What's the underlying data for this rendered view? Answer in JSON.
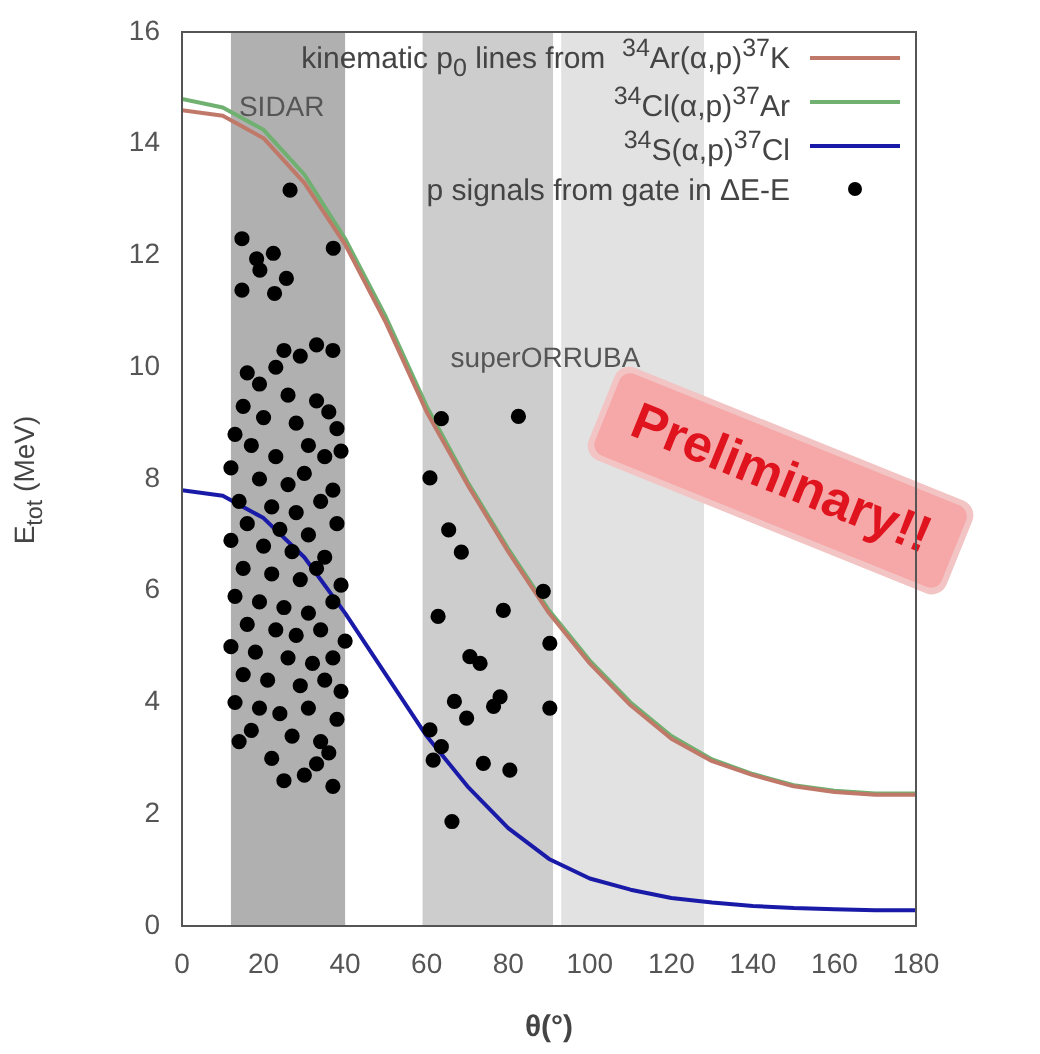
{
  "chart_data": {
    "type": "scatter",
    "xlabel": "θ(°)",
    "ylabel": "E$_{tot}$ (MeV)",
    "legend_title": "kinematic p$_{0}$ lines from",
    "legend": "top right",
    "grid": false,
    "xlim": [
      0,
      180
    ],
    "xticks": [
      0,
      20,
      40,
      60,
      80,
      100,
      120,
      140,
      160,
      180
    ],
    "ylim": [
      0,
      16
    ],
    "yticks": [
      0,
      2,
      4,
      6,
      8,
      10,
      12,
      14,
      16
    ],
    "bands": [
      {
        "axis": "x",
        "from": 12,
        "to": 40,
        "label": "SIDAR",
        "color": "#b0b0b0"
      },
      {
        "axis": "x",
        "from": 59,
        "to": 91,
        "label": "superORRUBA",
        "color": "#cdcdcd"
      },
      {
        "axis": "x",
        "from": 93,
        "to": 128,
        "color": "#e2e2e2"
      }
    ],
    "annotations": [
      "Preliminary!!"
    ],
    "series": [
      {
        "name": "$^{34}$Ar(α,p)$^{37}$K",
        "type": "line",
        "color": "#c07868",
        "x": [
          0,
          10,
          20,
          30,
          40,
          50,
          60,
          70,
          80,
          90,
          100,
          110,
          120,
          130,
          140,
          150,
          160,
          170,
          180
        ],
        "values": [
          14.6,
          14.5,
          14.1,
          13.3,
          12.2,
          10.8,
          9.2,
          7.9,
          6.7,
          5.6,
          4.7,
          3.95,
          3.35,
          2.95,
          2.7,
          2.5,
          2.4,
          2.35,
          2.35
        ]
      },
      {
        "name": "$^{34}$Cl(α,p)$^{37}$Ar",
        "type": "line",
        "color": "#70b070",
        "x": [
          0,
          10,
          20,
          30,
          40,
          50,
          60,
          70,
          80,
          90,
          100,
          110,
          120,
          130,
          140,
          150,
          160,
          170,
          180
        ],
        "values": [
          14.8,
          14.65,
          14.25,
          13.45,
          12.3,
          10.9,
          9.3,
          7.95,
          6.75,
          5.65,
          4.75,
          4.0,
          3.4,
          2.98,
          2.72,
          2.52,
          2.42,
          2.37,
          2.37
        ]
      },
      {
        "name": "$^{34}$S(α,p)$^{37}$Cl",
        "type": "line",
        "color": "#1a1aa8",
        "x": [
          0,
          10,
          20,
          30,
          40,
          50,
          60,
          70,
          80,
          90,
          100,
          110,
          120,
          130,
          140,
          150,
          160,
          170,
          180
        ],
        "values": [
          7.8,
          7.7,
          7.3,
          6.6,
          5.6,
          4.5,
          3.4,
          2.5,
          1.75,
          1.2,
          0.85,
          0.65,
          0.5,
          0.42,
          0.36,
          0.32,
          0.3,
          0.28,
          0.28
        ]
      },
      {
        "name": "p signals from gate in ΔE-E",
        "type": "scatter",
        "color": "#000000",
        "marker": "circle",
        "x": [
          14.7,
          18.3,
          22.4,
          19.1,
          25.6,
          14.7,
          22.7,
          37.1,
          26.5,
          25,
          29,
          33,
          37,
          23,
          16,
          19,
          26,
          33,
          15,
          20,
          28,
          36,
          38,
          13,
          17,
          23,
          31,
          35,
          39,
          12,
          19,
          26,
          30,
          37,
          14,
          22,
          28,
          34,
          16,
          24,
          31,
          38,
          12,
          20,
          27,
          35,
          15,
          22,
          29,
          33,
          39,
          13,
          19,
          25,
          31,
          37,
          16,
          23,
          28,
          34,
          40,
          12,
          18,
          26,
          32,
          37,
          15,
          21,
          29,
          35,
          39,
          13,
          19,
          24,
          31,
          38,
          17,
          27,
          34,
          22,
          36,
          25,
          30,
          37,
          14,
          33,
          63.6,
          82.5,
          60.8,
          65.4,
          68.5,
          88.6,
          62.8,
          78.8,
          70.6,
          73.1,
          90.2,
          66.8,
          69.8,
          76.4,
          78.0,
          90.2,
          60.8,
          63.6,
          61.6,
          73.9,
          80.4,
          66.2
        ],
        "values": [
          12.3,
          11.94,
          12.04,
          11.74,
          11.59,
          11.38,
          11.32,
          12.13,
          13.17,
          10.3,
          10.2,
          10.4,
          10.3,
          10.0,
          9.9,
          9.7,
          9.5,
          9.4,
          9.3,
          9.1,
          9.0,
          9.2,
          8.9,
          8.8,
          8.6,
          8.4,
          8.6,
          8.4,
          8.5,
          8.2,
          8.0,
          7.9,
          8.1,
          7.8,
          7.6,
          7.5,
          7.4,
          7.6,
          7.2,
          7.1,
          7.0,
          7.2,
          6.9,
          6.8,
          6.7,
          6.6,
          6.4,
          6.3,
          6.2,
          6.4,
          6.1,
          5.9,
          5.8,
          5.7,
          5.6,
          5.8,
          5.4,
          5.3,
          5.2,
          5.3,
          5.1,
          5.0,
          4.9,
          4.8,
          4.7,
          4.8,
          4.5,
          4.4,
          4.3,
          4.4,
          4.2,
          4.0,
          3.9,
          3.8,
          3.9,
          3.7,
          3.5,
          3.4,
          3.3,
          3.0,
          3.1,
          2.6,
          2.7,
          2.5,
          3.3,
          2.9,
          9.08,
          9.12,
          8.02,
          7.09,
          6.69,
          5.99,
          5.54,
          5.65,
          4.82,
          4.7,
          5.06,
          4.02,
          3.72,
          3.93,
          4.1,
          3.9,
          3.51,
          3.21,
          2.97,
          2.91,
          2.79,
          1.87
        ]
      }
    ]
  }
}
